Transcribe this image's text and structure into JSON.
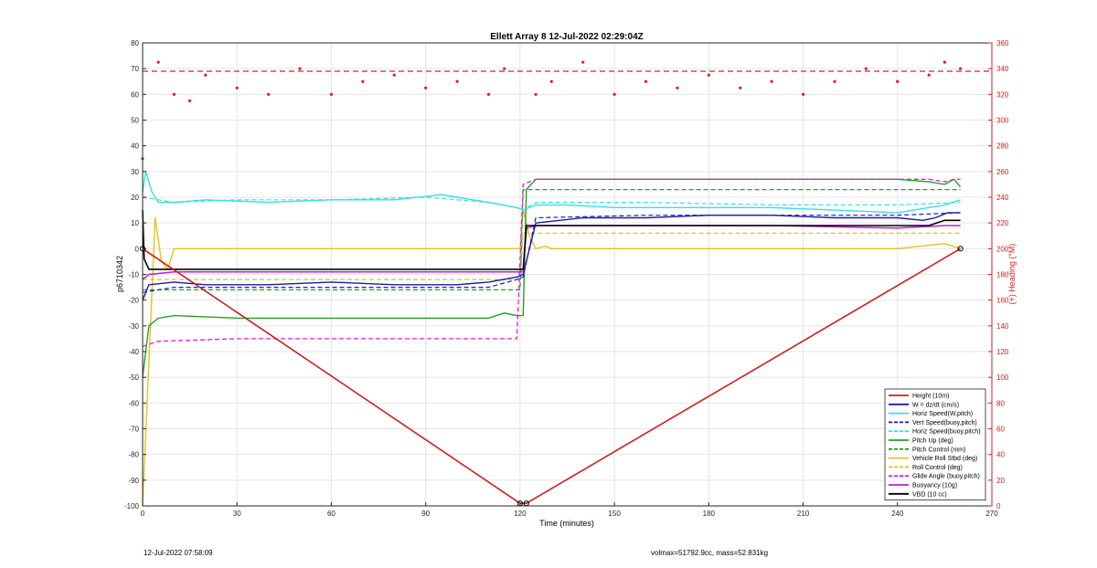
{
  "footer": {
    "left": "12-Jul-2022 07:58:09",
    "right": "volmax=51792.9cc, mass=52.831kg"
  },
  "colors": {
    "height": "#cc1f1f",
    "w": "#1a1ab0",
    "horiz_speed": "#33e0e6",
    "vert_speed_dash": "#1a1ad0",
    "pitch": "#22a022",
    "roll": "#e6c21a",
    "glide_dash": "#e21ae6",
    "buoyancy": "#c11ad6",
    "vbd": "#000000",
    "heading": "#d62020",
    "right_axis": "#d62020"
  },
  "chart_data": {
    "type": "line",
    "title": "Ellett Array 8 12-Jul-2022 02:29:04Z",
    "xlabel": "Time (minutes)",
    "ylabel": "p6710342",
    "y2label": "(+) Heading (°M)",
    "xlim": [
      0,
      270
    ],
    "ylim": [
      -100,
      80
    ],
    "y2lim": [
      0,
      360
    ],
    "xticks": [
      "0",
      "30",
      "60",
      "90",
      "120",
      "150",
      "180",
      "210",
      "240",
      "270"
    ],
    "yticks": [
      "-100",
      "-90",
      "-80",
      "-70",
      "-60",
      "-50",
      "-40",
      "-30",
      "-20",
      "-10",
      "0",
      "10",
      "20",
      "30",
      "40",
      "50",
      "60",
      "70",
      "80"
    ],
    "y2ticks": [
      "0",
      "20",
      "40",
      "60",
      "80",
      "100",
      "120",
      "140",
      "160",
      "180",
      "200",
      "220",
      "240",
      "260",
      "280",
      "300",
      "320",
      "340",
      "360"
    ],
    "grid": true,
    "legend_position": "bottom-right",
    "legend": [
      {
        "label": "Height (10m)",
        "color": "#cc1f1f",
        "dash": false
      },
      {
        "label": "W = dz/dt (cm/s)",
        "color": "#1a1ab0",
        "dash": false
      },
      {
        "label": "Horiz Speed(W,pitch)",
        "color": "#33e0e6",
        "dash": false
      },
      {
        "label": "Vert Speed(buoy,pitch)",
        "color": "#1a1ad0",
        "dash": true
      },
      {
        "label": "Horiz Speed(buoy,pitch)",
        "color": "#33e0e6",
        "dash": true
      },
      {
        "label": "Pitch Up (deg)",
        "color": "#22a022",
        "dash": false
      },
      {
        "label": "Pitch Control (mm)",
        "color": "#22a022",
        "dash": true
      },
      {
        "label": "Vehicle Roll Stbd (deg)",
        "color": "#e6c21a",
        "dash": false
      },
      {
        "label": "Roll Control (deg)",
        "color": "#e6c21a",
        "dash": true
      },
      {
        "label": "Glide Angle (buoy,pitch)",
        "color": "#e21ae6",
        "dash": true
      },
      {
        "label": "Buoyancy (10g)",
        "color": "#c11ad6",
        "dash": false
      },
      {
        "label": "VBD (10 cc)",
        "color": "#000000",
        "dash": false
      }
    ],
    "heading_reference": 338,
    "series": [
      {
        "name": "Height (10m)",
        "x": [
          0,
          120,
          122,
          260
        ],
        "y": [
          0,
          -99,
          -99,
          0
        ]
      },
      {
        "name": "W = dz/dt (cm/s)",
        "x": [
          0,
          2,
          10,
          20,
          40,
          60,
          80,
          100,
          110,
          119,
          121,
          125,
          140,
          160,
          180,
          200,
          220,
          240,
          248,
          252,
          256,
          260
        ],
        "y": [
          -20,
          -14,
          -13,
          -14,
          -14,
          -13,
          -14,
          -14,
          -13,
          -11,
          -10,
          10,
          12,
          12,
          13,
          13,
          12,
          12,
          11,
          12,
          14,
          14
        ]
      },
      {
        "name": "Horiz Speed(W,pitch)",
        "x": [
          0,
          1,
          3,
          5,
          10,
          20,
          40,
          60,
          80,
          95,
          100,
          110,
          119,
          121,
          125,
          135,
          150,
          165,
          180,
          200,
          220,
          240,
          250,
          255,
          260
        ],
        "y": [
          22,
          30,
          22,
          18,
          18,
          19,
          18,
          19,
          19,
          21,
          20,
          18,
          16,
          15,
          17,
          17,
          16,
          16,
          16,
          16,
          15,
          14,
          16,
          17,
          19
        ]
      },
      {
        "name": "Vert Speed(buoy,pitch)",
        "x": [
          0,
          10,
          30,
          60,
          90,
          110,
          119,
          121,
          125,
          160,
          200,
          240,
          260
        ],
        "y": [
          -17,
          -15,
          -15,
          -15,
          -15,
          -15,
          -12,
          -11,
          12,
          13,
          13,
          13,
          14
        ]
      },
      {
        "name": "Horiz Speed(buoy,pitch)",
        "x": [
          0,
          10,
          30,
          60,
          90,
          110,
          119,
          121,
          125,
          160,
          200,
          240,
          260
        ],
        "y": [
          20,
          18,
          19,
          19,
          20,
          18,
          16,
          15,
          18,
          18,
          17,
          17,
          18
        ]
      },
      {
        "name": "Pitch Up (deg)",
        "x": [
          0,
          2,
          5,
          10,
          30,
          60,
          90,
          110,
          115,
          119,
          120,
          121,
          122,
          125,
          140,
          160,
          200,
          240,
          250,
          255,
          258,
          260
        ],
        "y": [
          -50,
          -30,
          -27,
          -26,
          -27,
          -27,
          -27,
          -27,
          -25,
          -26,
          -26,
          -26,
          23,
          27,
          27,
          27,
          27,
          27,
          26,
          25,
          27,
          24
        ]
      },
      {
        "name": "Pitch Control (mm)",
        "x": [
          0,
          120,
          121,
          260
        ],
        "y": [
          -16,
          -16,
          23,
          23
        ]
      },
      {
        "name": "Vehicle Roll Stbd (deg)",
        "x": [
          0,
          4,
          6,
          8,
          10,
          120,
          121,
          123,
          125,
          128,
          130,
          140,
          150,
          160,
          170,
          200,
          240,
          255,
          260
        ],
        "y": [
          -100,
          12,
          -5,
          -8,
          0,
          0,
          15,
          5,
          0,
          1,
          0,
          0,
          0,
          0,
          0,
          0,
          0,
          2,
          0
        ]
      },
      {
        "name": "Roll Control (deg)",
        "x": [
          0,
          120,
          121,
          260
        ],
        "y": [
          -12,
          -12,
          6,
          6
        ]
      },
      {
        "name": "Glide Angle (buoy,pitch)",
        "x": [
          0,
          5,
          30,
          60,
          90,
          118,
          119,
          121,
          125,
          160,
          200,
          240,
          250,
          255,
          258,
          260
        ],
        "y": [
          -38,
          -36,
          -35,
          -35,
          -35,
          -35,
          -35,
          25,
          27,
          27,
          27,
          27,
          27,
          26,
          27,
          27
        ]
      },
      {
        "name": "Buoyancy (10g)",
        "x": [
          0,
          2,
          10,
          30,
          60,
          90,
          119,
          121,
          122,
          125,
          160,
          200,
          240,
          255,
          260
        ],
        "y": [
          -12,
          -10,
          -9,
          -9,
          -9,
          -9,
          -9,
          -9,
          8,
          9,
          9,
          9,
          8,
          9,
          9
        ]
      },
      {
        "name": "VBD (10 cc)",
        "x": [
          0,
          0.5,
          2,
          10,
          30,
          60,
          90,
          119,
          121,
          122,
          125,
          160,
          200,
          240,
          250,
          255,
          260
        ],
        "y": [
          15,
          -4,
          -8,
          -8,
          -8,
          -8,
          -8,
          -8,
          -8,
          9,
          9,
          9,
          9,
          9,
          9,
          11,
          11
        ]
      },
      {
        "name": "(+) Heading (°M)",
        "x": [
          0,
          5,
          10,
          15,
          20,
          30,
          40,
          50,
          60,
          70,
          80,
          90,
          100,
          110,
          115,
          125,
          130,
          140,
          150,
          160,
          170,
          180,
          190,
          200,
          210,
          220,
          230,
          240,
          250,
          255,
          260
        ],
        "y": [
          270,
          345,
          320,
          315,
          335,
          325,
          320,
          340,
          320,
          330,
          335,
          325,
          330,
          320,
          340,
          320,
          330,
          345,
          320,
          330,
          325,
          335,
          325,
          330,
          320,
          330,
          340,
          330,
          335,
          345,
          340
        ]
      }
    ]
  }
}
